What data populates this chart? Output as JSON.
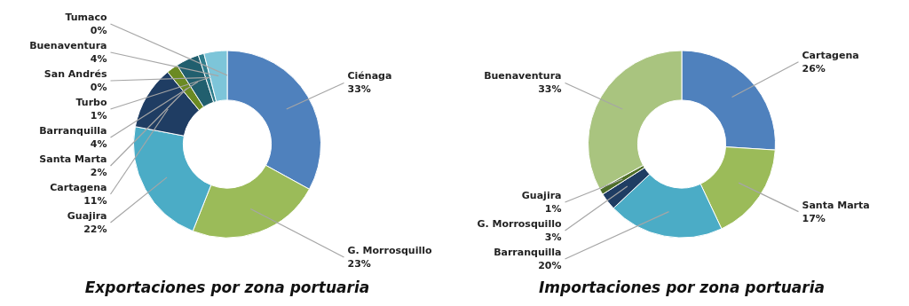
{
  "chart_data": [
    {
      "type": "donut",
      "title": "Exportaciones por zona portuaria",
      "categories": [
        "Ciénaga",
        "G. Morrosquillo",
        "Guajira",
        "Cartagena",
        "Santa Marta",
        "Barranquilla",
        "Turbo",
        "San Andrés",
        "Buenaventura",
        "Tumaco"
      ],
      "values": [
        33,
        23,
        22,
        11,
        2,
        4,
        1,
        0,
        4,
        0
      ],
      "value_labels": [
        "33%",
        "23%",
        "22%",
        "11%",
        "2%",
        "4%",
        "1%",
        "0%",
        "4%",
        "0%"
      ],
      "colors": [
        "#4f81bd",
        "#9bbb59",
        "#4bacc6",
        "#1f3d63",
        "#6b8a23",
        "#215f6e",
        "#2e7d8c",
        "#4aa3b8",
        "#7dc5d9",
        "#b7dde8"
      ]
    },
    {
      "type": "donut",
      "title": "Importaciones por zona portuaria",
      "categories": [
        "Cartagena",
        "Santa Marta",
        "Barranquilla",
        "G. Morrosquillo",
        "Guajira",
        "Buenaventura"
      ],
      "values": [
        26,
        17,
        20,
        3,
        1,
        33
      ],
      "value_labels": [
        "26%",
        "17%",
        "20%",
        "3%",
        "1%",
        "33%"
      ],
      "colors": [
        "#4f81bd",
        "#9bbb59",
        "#4bacc6",
        "#1f3d63",
        "#4f6f2a",
        "#a9c47f"
      ]
    }
  ]
}
